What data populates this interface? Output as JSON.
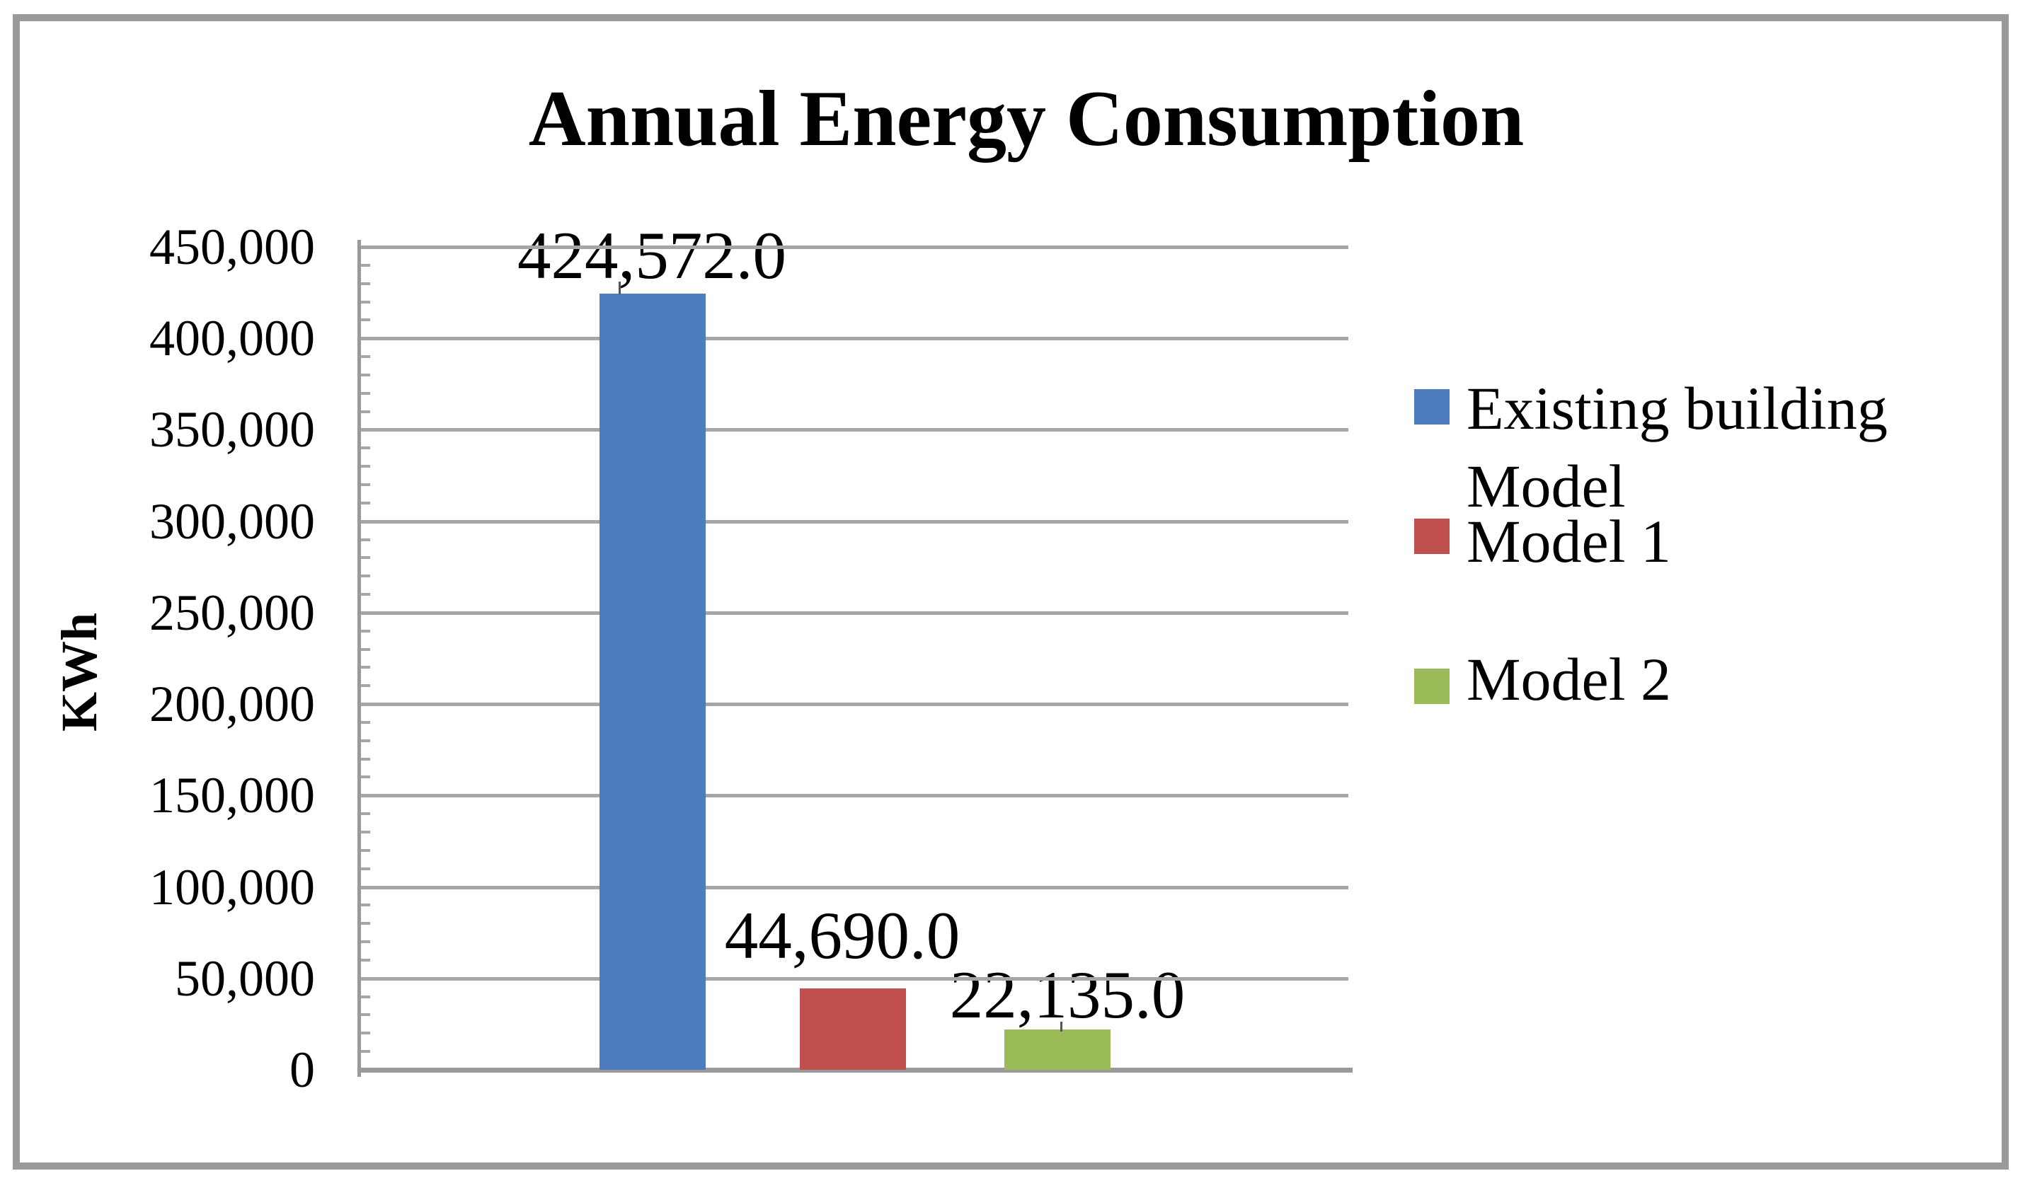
{
  "chart_data": {
    "type": "bar",
    "title": "Annual Energy Consumption",
    "ylabel": "KWh",
    "xlabel": "",
    "categories": [
      "Existing building Model",
      "Model 1",
      "Model 2"
    ],
    "values": [
      424572,
      44690,
      22135
    ],
    "data_labels": [
      "424,572.0",
      "44,690.0",
      "22,135.0"
    ],
    "bar_colors": [
      "#4d7dbd",
      "#c0504d",
      "#9bbb59"
    ],
    "ylim": [
      0,
      450000
    ],
    "ytick_interval": 50000,
    "minor_tick_interval": 10000,
    "ytick_labels": [
      "450,000",
      "400,000",
      "350,000",
      "300,000",
      "250,000",
      "200,000",
      "150,000",
      "100,000",
      "50,000",
      "0"
    ],
    "grid": true,
    "grid_color": "#a6a6a6",
    "axis_color": "#9a9a9a",
    "legend_position": "right",
    "legend": [
      {
        "label": "Existing building Model",
        "color": "#4d7dbd"
      },
      {
        "label": "Model 1",
        "color": "#c0504d"
      },
      {
        "label": "Model 2",
        "color": "#9bbb59"
      }
    ]
  }
}
